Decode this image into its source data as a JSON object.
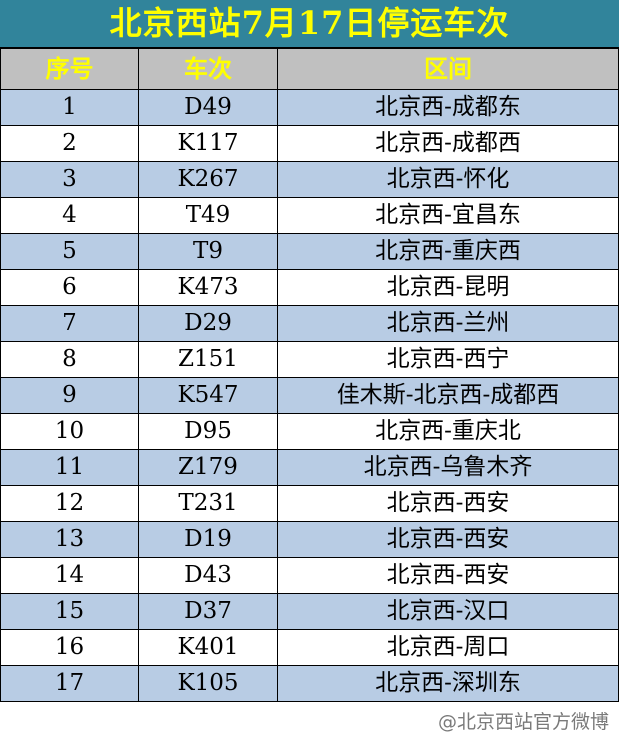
{
  "title": "北京西站7月17日停运车次",
  "headers": [
    "序号",
    "车次",
    "区间"
  ],
  "rows": [
    [
      "1",
      "D49",
      "北京西-成都东"
    ],
    [
      "2",
      "K117",
      "北京西-成都西"
    ],
    [
      "3",
      "K267",
      "北京西-怀化"
    ],
    [
      "4",
      "T49",
      "北京西-宜昌东"
    ],
    [
      "5",
      "T9",
      "北京西-重庆西"
    ],
    [
      "6",
      "K473",
      "北京西-昆明"
    ],
    [
      "7",
      "D29",
      "北京西-兰州"
    ],
    [
      "8",
      "Z151",
      "北京西-西宁"
    ],
    [
      "9",
      "K547",
      "佳木斯-北京西-成都西"
    ],
    [
      "10",
      "D95",
      "北京西-重庆北"
    ],
    [
      "11",
      "Z179",
      "北京西-乌鲁木齐"
    ],
    [
      "12",
      "T231",
      "北京西-西安"
    ],
    [
      "13",
      "D19",
      "北京西-西安"
    ],
    [
      "14",
      "D43",
      "北京西-西安"
    ],
    [
      "15",
      "D37",
      "北京西-汉口"
    ],
    [
      "16",
      "K401",
      "北京西-周口"
    ],
    [
      "17",
      "K105",
      "北京西-深圳东"
    ]
  ],
  "watermark": "@北京西站官方微博",
  "colors": {
    "title_bg": "#31849b",
    "title_text": "#ffff00",
    "header_bg": "#c0c0c0",
    "row_alt": "#b8cce4"
  }
}
